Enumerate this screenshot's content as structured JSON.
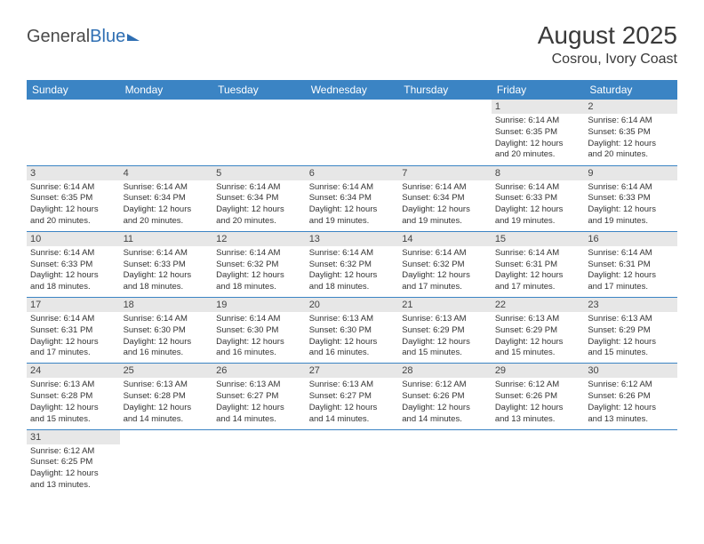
{
  "logo": {
    "part1": "General",
    "part2": "Blue"
  },
  "title": "August 2025",
  "location": "Cosrou, Ivory Coast",
  "colors": {
    "header_bg": "#3b84c4",
    "header_text": "#ffffff",
    "daynum_bg": "#e7e7e7",
    "border": "#3b84c4",
    "logo_gray": "#4a4a4a",
    "logo_blue": "#2f6fb3"
  },
  "daysOfWeek": [
    "Sunday",
    "Monday",
    "Tuesday",
    "Wednesday",
    "Thursday",
    "Friday",
    "Saturday"
  ],
  "weeks": [
    [
      null,
      null,
      null,
      null,
      null,
      {
        "n": "1",
        "sr": "Sunrise: 6:14 AM",
        "ss": "Sunset: 6:35 PM",
        "dl1": "Daylight: 12 hours",
        "dl2": "and 20 minutes."
      },
      {
        "n": "2",
        "sr": "Sunrise: 6:14 AM",
        "ss": "Sunset: 6:35 PM",
        "dl1": "Daylight: 12 hours",
        "dl2": "and 20 minutes."
      }
    ],
    [
      {
        "n": "3",
        "sr": "Sunrise: 6:14 AM",
        "ss": "Sunset: 6:35 PM",
        "dl1": "Daylight: 12 hours",
        "dl2": "and 20 minutes."
      },
      {
        "n": "4",
        "sr": "Sunrise: 6:14 AM",
        "ss": "Sunset: 6:34 PM",
        "dl1": "Daylight: 12 hours",
        "dl2": "and 20 minutes."
      },
      {
        "n": "5",
        "sr": "Sunrise: 6:14 AM",
        "ss": "Sunset: 6:34 PM",
        "dl1": "Daylight: 12 hours",
        "dl2": "and 20 minutes."
      },
      {
        "n": "6",
        "sr": "Sunrise: 6:14 AM",
        "ss": "Sunset: 6:34 PM",
        "dl1": "Daylight: 12 hours",
        "dl2": "and 19 minutes."
      },
      {
        "n": "7",
        "sr": "Sunrise: 6:14 AM",
        "ss": "Sunset: 6:34 PM",
        "dl1": "Daylight: 12 hours",
        "dl2": "and 19 minutes."
      },
      {
        "n": "8",
        "sr": "Sunrise: 6:14 AM",
        "ss": "Sunset: 6:33 PM",
        "dl1": "Daylight: 12 hours",
        "dl2": "and 19 minutes."
      },
      {
        "n": "9",
        "sr": "Sunrise: 6:14 AM",
        "ss": "Sunset: 6:33 PM",
        "dl1": "Daylight: 12 hours",
        "dl2": "and 19 minutes."
      }
    ],
    [
      {
        "n": "10",
        "sr": "Sunrise: 6:14 AM",
        "ss": "Sunset: 6:33 PM",
        "dl1": "Daylight: 12 hours",
        "dl2": "and 18 minutes."
      },
      {
        "n": "11",
        "sr": "Sunrise: 6:14 AM",
        "ss": "Sunset: 6:33 PM",
        "dl1": "Daylight: 12 hours",
        "dl2": "and 18 minutes."
      },
      {
        "n": "12",
        "sr": "Sunrise: 6:14 AM",
        "ss": "Sunset: 6:32 PM",
        "dl1": "Daylight: 12 hours",
        "dl2": "and 18 minutes."
      },
      {
        "n": "13",
        "sr": "Sunrise: 6:14 AM",
        "ss": "Sunset: 6:32 PM",
        "dl1": "Daylight: 12 hours",
        "dl2": "and 18 minutes."
      },
      {
        "n": "14",
        "sr": "Sunrise: 6:14 AM",
        "ss": "Sunset: 6:32 PM",
        "dl1": "Daylight: 12 hours",
        "dl2": "and 17 minutes."
      },
      {
        "n": "15",
        "sr": "Sunrise: 6:14 AM",
        "ss": "Sunset: 6:31 PM",
        "dl1": "Daylight: 12 hours",
        "dl2": "and 17 minutes."
      },
      {
        "n": "16",
        "sr": "Sunrise: 6:14 AM",
        "ss": "Sunset: 6:31 PM",
        "dl1": "Daylight: 12 hours",
        "dl2": "and 17 minutes."
      }
    ],
    [
      {
        "n": "17",
        "sr": "Sunrise: 6:14 AM",
        "ss": "Sunset: 6:31 PM",
        "dl1": "Daylight: 12 hours",
        "dl2": "and 17 minutes."
      },
      {
        "n": "18",
        "sr": "Sunrise: 6:14 AM",
        "ss": "Sunset: 6:30 PM",
        "dl1": "Daylight: 12 hours",
        "dl2": "and 16 minutes."
      },
      {
        "n": "19",
        "sr": "Sunrise: 6:14 AM",
        "ss": "Sunset: 6:30 PM",
        "dl1": "Daylight: 12 hours",
        "dl2": "and 16 minutes."
      },
      {
        "n": "20",
        "sr": "Sunrise: 6:13 AM",
        "ss": "Sunset: 6:30 PM",
        "dl1": "Daylight: 12 hours",
        "dl2": "and 16 minutes."
      },
      {
        "n": "21",
        "sr": "Sunrise: 6:13 AM",
        "ss": "Sunset: 6:29 PM",
        "dl1": "Daylight: 12 hours",
        "dl2": "and 15 minutes."
      },
      {
        "n": "22",
        "sr": "Sunrise: 6:13 AM",
        "ss": "Sunset: 6:29 PM",
        "dl1": "Daylight: 12 hours",
        "dl2": "and 15 minutes."
      },
      {
        "n": "23",
        "sr": "Sunrise: 6:13 AM",
        "ss": "Sunset: 6:29 PM",
        "dl1": "Daylight: 12 hours",
        "dl2": "and 15 minutes."
      }
    ],
    [
      {
        "n": "24",
        "sr": "Sunrise: 6:13 AM",
        "ss": "Sunset: 6:28 PM",
        "dl1": "Daylight: 12 hours",
        "dl2": "and 15 minutes."
      },
      {
        "n": "25",
        "sr": "Sunrise: 6:13 AM",
        "ss": "Sunset: 6:28 PM",
        "dl1": "Daylight: 12 hours",
        "dl2": "and 14 minutes."
      },
      {
        "n": "26",
        "sr": "Sunrise: 6:13 AM",
        "ss": "Sunset: 6:27 PM",
        "dl1": "Daylight: 12 hours",
        "dl2": "and 14 minutes."
      },
      {
        "n": "27",
        "sr": "Sunrise: 6:13 AM",
        "ss": "Sunset: 6:27 PM",
        "dl1": "Daylight: 12 hours",
        "dl2": "and 14 minutes."
      },
      {
        "n": "28",
        "sr": "Sunrise: 6:12 AM",
        "ss": "Sunset: 6:26 PM",
        "dl1": "Daylight: 12 hours",
        "dl2": "and 14 minutes."
      },
      {
        "n": "29",
        "sr": "Sunrise: 6:12 AM",
        "ss": "Sunset: 6:26 PM",
        "dl1": "Daylight: 12 hours",
        "dl2": "and 13 minutes."
      },
      {
        "n": "30",
        "sr": "Sunrise: 6:12 AM",
        "ss": "Sunset: 6:26 PM",
        "dl1": "Daylight: 12 hours",
        "dl2": "and 13 minutes."
      }
    ],
    [
      {
        "n": "31",
        "sr": "Sunrise: 6:12 AM",
        "ss": "Sunset: 6:25 PM",
        "dl1": "Daylight: 12 hours",
        "dl2": "and 13 minutes."
      },
      null,
      null,
      null,
      null,
      null,
      null
    ]
  ]
}
